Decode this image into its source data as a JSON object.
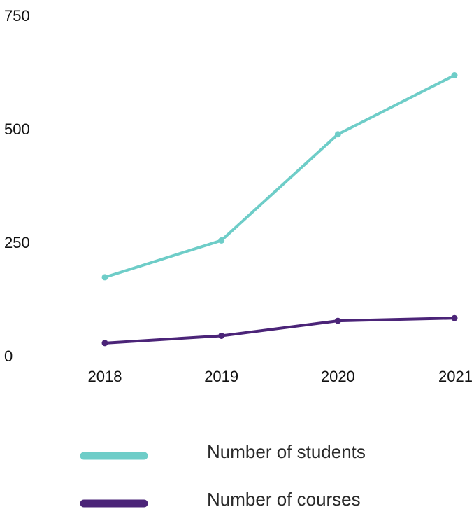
{
  "chart_data": {
    "type": "line",
    "categories": [
      "2018",
      "2019",
      "2020",
      "2021"
    ],
    "series": [
      {
        "name": "Number of students",
        "values": [
          173,
          254,
          488,
          618
        ],
        "color": "#6ecdc8"
      },
      {
        "name": "Number of courses",
        "values": [
          28,
          44,
          77,
          83
        ],
        "color": "#4b2478"
      }
    ],
    "yticks": [
      "0",
      "250",
      "500",
      "750"
    ],
    "ylim": [
      0,
      750
    ],
    "grid": false,
    "legend": "bottom"
  }
}
